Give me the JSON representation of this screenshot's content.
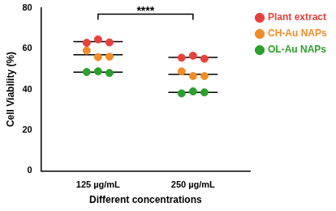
{
  "chart_data": {
    "type": "scatter",
    "x_label": "Different concentrations",
    "y_label": "Cell Viability (%)",
    "categories": [
      "125 µg/mL",
      "250 µg/mL"
    ],
    "series": [
      {
        "name": "Plant extract",
        "color": "#e8413c",
        "values": [
          [
            62.8,
            64.5,
            63.0
          ],
          [
            55.5,
            56.5,
            55.0
          ]
        ],
        "mean": [
          63.4,
          55.7
        ]
      },
      {
        "name": "CH-Au NAPs",
        "color": "#f28c28",
        "values": [
          [
            59.0,
            55.8,
            56.0
          ],
          [
            48.8,
            46.5,
            46.5
          ]
        ],
        "mean": [
          56.9,
          47.3
        ]
      },
      {
        "name": "OL-Au NAPs",
        "color": "#2ca02c",
        "values": [
          [
            48.5,
            48.8,
            48.0
          ],
          [
            38.0,
            39.0,
            38.5
          ]
        ],
        "mean": [
          48.4,
          38.5
        ]
      }
    ],
    "ylim": [
      0,
      80
    ],
    "yticks": [
      0,
      20,
      40,
      60,
      80
    ],
    "grid": false,
    "legend": "right",
    "marker": "circle",
    "annotations": [
      {
        "text": "****",
        "from": "125 µg/mL",
        "to": "250 µg/mL"
      }
    ]
  }
}
